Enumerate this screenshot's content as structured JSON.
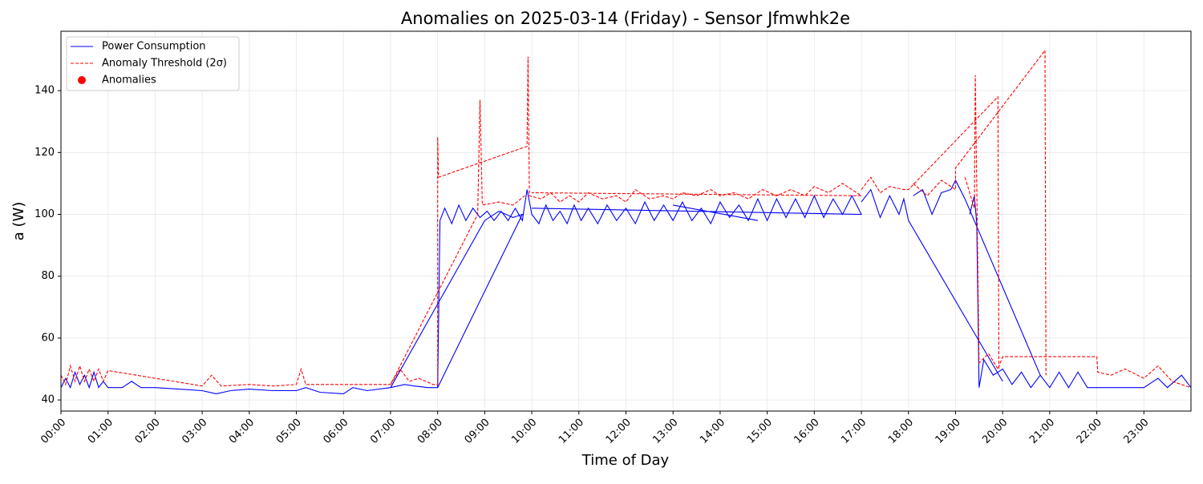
{
  "chart_data": {
    "type": "line",
    "title": "Anomalies on 2025-03-14 (Friday) - Sensor Jfmwhk2e",
    "x_label": "Time of Day",
    "y_label": "a (W)",
    "xlim": [
      0,
      24
    ],
    "ylim": [
      36.4,
      159.2
    ],
    "xticks": [
      {
        "value": 0,
        "label": "00:00"
      },
      {
        "value": 1,
        "label": "01:00"
      },
      {
        "value": 2,
        "label": "02:00"
      },
      {
        "value": 3,
        "label": "03:00"
      },
      {
        "value": 4,
        "label": "04:00"
      },
      {
        "value": 5,
        "label": "05:00"
      },
      {
        "value": 6,
        "label": "06:00"
      },
      {
        "value": 7,
        "label": "07:00"
      },
      {
        "value": 8,
        "label": "08:00"
      },
      {
        "value": 9,
        "label": "09:00"
      },
      {
        "value": 10,
        "label": "10:00"
      },
      {
        "value": 11,
        "label": "11:00"
      },
      {
        "value": 12,
        "label": "12:00"
      },
      {
        "value": 13,
        "label": "13:00"
      },
      {
        "value": 14,
        "label": "14:00"
      },
      {
        "value": 15,
        "label": "15:00"
      },
      {
        "value": 16,
        "label": "16:00"
      },
      {
        "value": 17,
        "label": "17:00"
      },
      {
        "value": 18,
        "label": "18:00"
      },
      {
        "value": 19,
        "label": "19:00"
      },
      {
        "value": 20,
        "label": "20:00"
      },
      {
        "value": 21,
        "label": "21:00"
      },
      {
        "value": 22,
        "label": "22:00"
      },
      {
        "value": 23,
        "label": "23:00"
      }
    ],
    "yticks": [
      40,
      60,
      80,
      100,
      120,
      140
    ],
    "grid": true,
    "legend": "upper left",
    "series": [
      {
        "name": "Power Consumption",
        "color": "#0000ff",
        "style": "solid",
        "x": [
          0,
          0.1,
          0.2,
          0.3,
          0.4,
          0.5,
          0.6,
          0.7,
          0.8,
          0.9,
          1.0,
          1.3,
          1.5,
          1.7,
          2.0,
          2.5,
          3.0,
          3.3,
          3.6,
          4.0,
          4.5,
          5.0,
          5.2,
          5.5,
          6.0,
          6.2,
          6.5,
          7.0,
          9.0,
          9.3,
          9.6,
          9.8,
          8.0,
          8.0,
          7.0,
          7.3,
          7.5,
          7.8,
          8.0,
          8.05,
          8.15,
          8.3,
          8.45,
          8.6,
          8.75,
          8.9,
          9.05,
          9.2,
          9.35,
          9.5,
          9.65,
          9.8,
          9.9,
          10.0,
          10.15,
          10.3,
          10.45,
          10.6,
          10.75,
          10.9,
          11.05,
          11.2,
          11.4,
          11.6,
          11.8,
          12.0,
          12.2,
          12.4,
          12.6,
          12.8,
          13.0,
          13.2,
          13.4,
          13.6,
          13.8,
          14.0,
          14.2,
          14.4,
          14.6,
          14.8,
          15.0,
          15.2,
          15.4,
          15.6,
          15.8,
          16.0,
          16.2,
          16.4,
          16.6,
          16.8,
          17.0,
          10.0,
          12.0,
          13.0,
          14.8,
          16.0,
          17.0,
          17.2,
          17.4,
          17.6,
          17.8,
          17.9,
          18.0,
          20.0,
          19.0,
          18.1,
          18.3,
          18.5,
          18.7,
          18.9,
          19.0,
          19.2,
          20.8,
          19.3,
          19.3,
          19.4,
          19.45,
          19.5,
          19.6,
          19.8,
          20.0,
          20.2,
          20.4,
          20.6,
          20.8,
          21.0,
          21.2,
          21.4,
          21.6,
          21.8,
          22.0,
          22.5,
          23.0,
          23.3,
          23.5,
          23.8,
          24.0
        ],
        "values": [
          44,
          47,
          44,
          49,
          45,
          48,
          44,
          49,
          44,
          46,
          44,
          44,
          46,
          44,
          44,
          43.5,
          43,
          42,
          43,
          43.5,
          43,
          43,
          44,
          42.5,
          42,
          44,
          43,
          44,
          98,
          101,
          99,
          100,
          44,
          null,
          44,
          45,
          44.5,
          44,
          44,
          98,
          102,
          97,
          103,
          98,
          102,
          99,
          101,
          98,
          101,
          98,
          102,
          98,
          108,
          100,
          97,
          103,
          98,
          101,
          97,
          103,
          98,
          102,
          97,
          103,
          98,
          102,
          97,
          104,
          98,
          103,
          98,
          104,
          98,
          102,
          97,
          104,
          99,
          103,
          98,
          105,
          98,
          105,
          99,
          105,
          99,
          106,
          99,
          105,
          100,
          106,
          100,
          102,
          null,
          103,
          98,
          null,
          104,
          108,
          99,
          106,
          100,
          105,
          98,
          46,
          null,
          106,
          108,
          100,
          107,
          108,
          111,
          105,
          48,
          null,
          100,
          106,
          97,
          44,
          53,
          48,
          50,
          45,
          49,
          44,
          48,
          44,
          49,
          44,
          49,
          44,
          44,
          44,
          44,
          47,
          44,
          48,
          44
        ]
      },
      {
        "name": "Anomaly Threshold (2σ)",
        "color": "#ff0000",
        "style": "dashed",
        "x": [
          0,
          0.1,
          0.2,
          0.3,
          0.4,
          0.5,
          0.6,
          0.7,
          0.8,
          0.9,
          1.0,
          3.0,
          3.2,
          3.4,
          4.0,
          4.5,
          5.0,
          5.1,
          5.2,
          6.0,
          7.0,
          8.85,
          8.9,
          8.95,
          9.3,
          9.6,
          9.85,
          8.0,
          7.0,
          7.2,
          7.4,
          7.6,
          7.9,
          8.0,
          8.0,
          8.02,
          9.9,
          9.92,
          9.95,
          10.2,
          10.4,
          10.6,
          10.8,
          11.0,
          11.2,
          11.5,
          11.8,
          12.0,
          12.2,
          12.5,
          12.8,
          13.0,
          13.2,
          13.5,
          13.8,
          14.0,
          14.3,
          14.6,
          14.9,
          15.2,
          15.5,
          15.8,
          16.0,
          16.3,
          16.6,
          16.9,
          17.0,
          10.0,
          13.0,
          17.0,
          17.2,
          17.4,
          17.6,
          17.9,
          18.0,
          19.9,
          19.92,
          19.0,
          18.1,
          18.4,
          18.7,
          19.0,
          19.0,
          20.9,
          20.92,
          19.1,
          19.2,
          19.4,
          19.42,
          19.5,
          19.7,
          19.9,
          20.0,
          22.0,
          22.02,
          22.3,
          22.6,
          23.0,
          23.3,
          23.6,
          24.0
        ],
        "values": [
          48,
          45,
          51,
          46,
          51,
          46,
          50,
          46,
          50,
          46,
          49.5,
          44.5,
          48,
          44.5,
          45,
          44.5,
          45,
          50,
          45,
          45,
          45,
          100,
          137,
          103,
          104,
          103,
          106,
          null,
          45,
          50,
          46,
          47,
          45,
          45,
          125,
          112,
          122,
          151,
          106,
          105,
          107,
          104,
          106,
          104,
          107,
          105,
          106,
          104,
          108,
          105,
          106,
          105,
          107,
          106,
          108,
          106,
          107,
          105,
          108,
          106,
          108,
          106,
          109,
          107,
          110,
          107,
          106,
          107,
          null,
          108,
          112,
          107,
          109,
          108,
          108,
          138,
          50,
          null,
          110,
          106,
          111,
          108,
          115,
          153,
          48,
          null,
          112,
          102,
          145,
          52,
          55,
          50,
          54,
          54,
          49,
          48,
          50,
          47,
          51,
          46,
          44
        ]
      },
      {
        "name": "Anomalies",
        "color": "#ff0000",
        "style": "scatter",
        "x": [],
        "values": []
      }
    ]
  }
}
